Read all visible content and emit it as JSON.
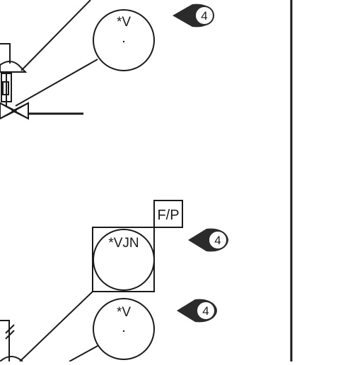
{
  "colors": {
    "ink": "#1a1a1a",
    "tag_fill": "#2b2b2b",
    "background": "#ffffff"
  },
  "instruments": {
    "top_circle": {
      "label": "*V",
      "tag_number": "4"
    },
    "middle_circle": {
      "label": "*VJN",
      "tag_number": "4",
      "box_label": "F/P"
    },
    "bottom_circle": {
      "label": "*V",
      "tag_number": "4"
    }
  },
  "icons": [
    "diamond-tag-icon",
    "globe-valve-icon",
    "actuator-icon"
  ]
}
